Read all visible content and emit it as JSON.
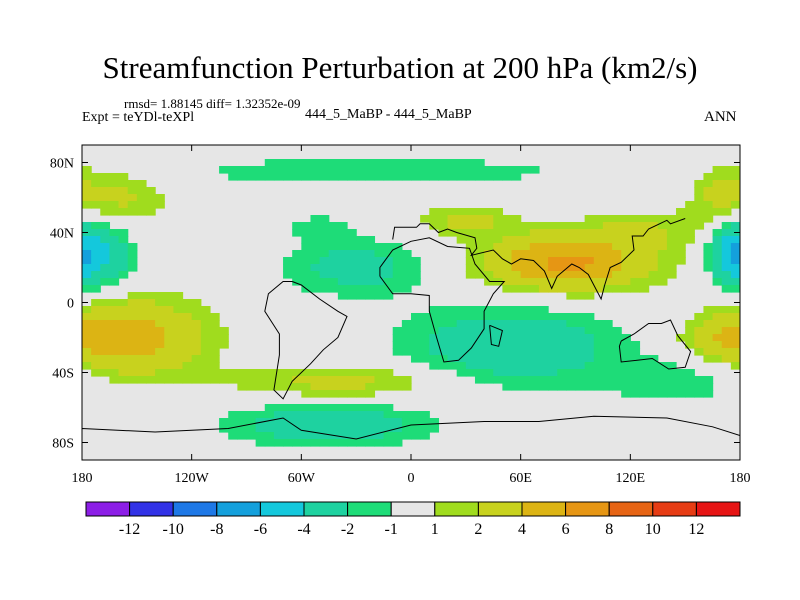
{
  "chart_data": {
    "type": "heatmap",
    "title": "Streamfunction Perturbation at 200 hPa (km2/s)",
    "stats_line": "rmsd= 1.88145 diff= 1.32352e-09",
    "experiment": "Expt = teYDl-teXPl",
    "center_label": "444_5_MaBP - 444_5_MaBP",
    "season": "ANN",
    "xlim": [
      -180,
      180
    ],
    "ylim": [
      -90,
      90
    ],
    "x_ticks": [
      {
        "value": -180,
        "label": "180"
      },
      {
        "value": -120,
        "label": "120W"
      },
      {
        "value": -60,
        "label": "60W"
      },
      {
        "value": 0,
        "label": "0"
      },
      {
        "value": 60,
        "label": "60E"
      },
      {
        "value": 120,
        "label": "120E"
      },
      {
        "value": 180,
        "label": "180"
      }
    ],
    "y_ticks": [
      {
        "value": 80,
        "label": "80N"
      },
      {
        "value": 40,
        "label": "40N"
      },
      {
        "value": 0,
        "label": "0"
      },
      {
        "value": -40,
        "label": "40S"
      },
      {
        "value": -80,
        "label": "80S"
      }
    ],
    "colorbar": {
      "labels": [
        "-12",
        "-10",
        "-8",
        "-6",
        "-4",
        "-2",
        "-1",
        "1",
        "2",
        "4",
        "6",
        "8",
        "10",
        "12"
      ],
      "colors": [
        "#8c1ee6",
        "#3232e6",
        "#1e78e6",
        "#14a0dc",
        "#14c8dc",
        "#1ed2a0",
        "#1edc78",
        "#e6e6e6",
        "#a0dc1e",
        "#c8d21e",
        "#dcb414",
        "#e69614",
        "#e66414",
        "#e63c14",
        "#e61414"
      ]
    },
    "features": [
      {
        "name": "nh-jet-band",
        "center": [
          -20,
          75
        ],
        "radius": [
          130,
          10
        ],
        "value": -1.6
      },
      {
        "name": "west-pacific-high-nh",
        "center": [
          -160,
          60
        ],
        "radius": [
          25,
          18
        ],
        "value": 2.5
      },
      {
        "name": "atlantic-nh-low",
        "center": [
          -50,
          43
        ],
        "radius": [
          18,
          8
        ],
        "value": -1.4
      },
      {
        "name": "mediterranean-high",
        "center": [
          30,
          47
        ],
        "radius": [
          25,
          9
        ],
        "value": 2.4
      },
      {
        "name": "asian-high",
        "center": [
          85,
          23
        ],
        "radius": [
          45,
          16
        ],
        "value": 6.5
      },
      {
        "name": "east-asian-band",
        "center": [
          130,
          42
        ],
        "radius": [
          35,
          12
        ],
        "value": 1.8
      },
      {
        "name": "far-east-high-nh",
        "center": [
          170,
          62
        ],
        "radius": [
          16,
          18
        ],
        "value": 2.5
      },
      {
        "name": "pacific-tropical-low-west",
        "center": [
          -170,
          28
        ],
        "radius": [
          18,
          20
        ],
        "value": -4.2
      },
      {
        "name": "pacific-tropical-low-east",
        "center": [
          175,
          28
        ],
        "radius": [
          12,
          20
        ],
        "value": -4.5
      },
      {
        "name": "atlantic-tropical-low",
        "center": [
          -30,
          20
        ],
        "radius": [
          40,
          16
        ],
        "value": -2.8
      },
      {
        "name": "sh-pacific-high",
        "center": [
          -155,
          -20
        ],
        "radius": [
          42,
          22
        ],
        "value": 5.2
      },
      {
        "name": "indian-ocean-low",
        "center": [
          55,
          -25
        ],
        "radius": [
          60,
          23
        ],
        "value": -3.6
      },
      {
        "name": "south-atlantic-band",
        "center": [
          -35,
          -45
        ],
        "radius": [
          60,
          10
        ],
        "value": 2.6
      },
      {
        "name": "southern-ocean-low",
        "center": [
          -45,
          -70
        ],
        "radius": [
          55,
          12
        ],
        "value": -3.4
      },
      {
        "name": "australia-band",
        "center": [
          150,
          -45
        ],
        "radius": [
          40,
          14
        ],
        "value": -1.8
      },
      {
        "name": "east-pacific-sh-band",
        "center": [
          170,
          -20
        ],
        "radius": [
          20,
          10
        ],
        "value": 2.2
      }
    ],
    "land_outline": [
      [
        [
          -65,
          12
        ],
        [
          -60,
          10
        ],
        [
          -50,
          2
        ],
        [
          -40,
          -5
        ],
        [
          -35,
          -8
        ],
        [
          -40,
          -20
        ],
        [
          -48,
          -27
        ],
        [
          -55,
          -35
        ],
        [
          -65,
          -45
        ],
        [
          -70,
          -55
        ],
        [
          -75,
          -50
        ],
        [
          -72,
          -30
        ],
        [
          -72,
          -18
        ],
        [
          -80,
          -5
        ],
        [
          -78,
          5
        ],
        [
          -70,
          12
        ],
        [
          -65,
          12
        ]
      ],
      [
        [
          -17,
          15
        ],
        [
          -10,
          5
        ],
        [
          0,
          5
        ],
        [
          10,
          4
        ],
        [
          10,
          -5
        ],
        [
          14,
          -20
        ],
        [
          18,
          -34
        ],
        [
          26,
          -33
        ],
        [
          33,
          -26
        ],
        [
          40,
          -15
        ],
        [
          40,
          -5
        ],
        [
          45,
          5
        ],
        [
          51,
          12
        ],
        [
          43,
          12
        ],
        [
          35,
          22
        ],
        [
          32,
          31
        ],
        [
          20,
          32
        ],
        [
          10,
          37
        ],
        [
          0,
          35
        ],
        [
          -10,
          30
        ],
        [
          -17,
          20
        ],
        [
          -17,
          15
        ]
      ],
      [
        [
          43,
          -13
        ],
        [
          50,
          -16
        ],
        [
          48,
          -25
        ],
        [
          44,
          -24
        ],
        [
          43,
          -13
        ]
      ],
      [
        [
          115,
          -22
        ],
        [
          122,
          -18
        ],
        [
          130,
          -12
        ],
        [
          137,
          -12
        ],
        [
          142,
          -10
        ],
        [
          146,
          -19
        ],
        [
          153,
          -28
        ],
        [
          150,
          -37
        ],
        [
          141,
          -38
        ],
        [
          132,
          -32
        ],
        [
          115,
          -34
        ],
        [
          114,
          -25
        ],
        [
          115,
          -22
        ]
      ],
      [
        [
          -180,
          -72
        ],
        [
          -140,
          -74
        ],
        [
          -100,
          -72
        ],
        [
          -70,
          -66
        ],
        [
          -60,
          -73
        ],
        [
          -30,
          -78
        ],
        [
          0,
          -70
        ],
        [
          40,
          -68
        ],
        [
          70,
          -68
        ],
        [
          100,
          -65
        ],
        [
          140,
          -66
        ],
        [
          165,
          -71
        ],
        [
          180,
          -76
        ],
        [
          180,
          -90
        ],
        [
          -180,
          -90
        ],
        [
          -180,
          -72
        ]
      ],
      [
        [
          -10,
          36
        ],
        [
          -9,
          43
        ],
        [
          -2,
          43
        ],
        [
          3,
          43
        ],
        [
          5,
          45
        ],
        [
          10,
          45
        ],
        [
          15,
          40
        ],
        [
          20,
          42
        ],
        [
          25,
          40
        ],
        [
          35,
          37
        ],
        [
          36,
          31
        ],
        [
          33,
          27
        ],
        [
          45,
          30
        ],
        [
          50,
          25
        ],
        [
          55,
          22
        ],
        [
          60,
          25
        ],
        [
          67,
          24
        ],
        [
          73,
          18
        ],
        [
          77,
          8
        ],
        [
          80,
          15
        ],
        [
          88,
          22
        ],
        [
          92,
          20
        ],
        [
          97,
          16
        ],
        [
          100,
          10
        ],
        [
          104,
          2
        ],
        [
          106,
          10
        ],
        [
          109,
          20
        ],
        [
          115,
          23
        ],
        [
          122,
          30
        ],
        [
          121,
          38
        ],
        [
          127,
          38
        ],
        [
          130,
          42
        ],
        [
          140,
          47
        ],
        [
          142,
          45
        ],
        [
          150,
          48
        ]
      ]
    ]
  }
}
